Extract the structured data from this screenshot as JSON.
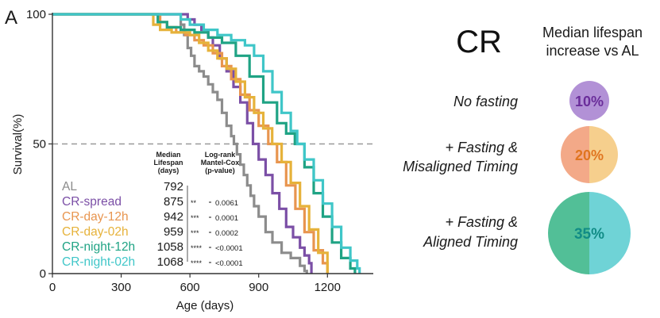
{
  "panel_label": "A",
  "colors": {
    "AL": "#8c8c8c",
    "CR-spread": "#7b4fa6",
    "CR-day-12h": "#e8954f",
    "CR-day-02h": "#e6b23a",
    "CR-night-12h": "#1fa384",
    "CR-night-02h": "#3fc6c8",
    "axis": "#333333",
    "text": "#1a1a1a",
    "ref_line": "#999999",
    "circle_nofast": "#b291d6",
    "circle_mis_left": "#f3a988",
    "circle_mis_right": "#f6cf8d",
    "circle_al_left": "#52bf97",
    "circle_al_right": "#6fd3d6",
    "pct_nofast": "#6a2d9a",
    "pct_mis": "#e07520",
    "pct_al": "#118c86"
  },
  "chart_data": {
    "type": "line",
    "xlabel": "Age (days)",
    "ylabel": "Survival(%)",
    "xlim": [
      0,
      1400
    ],
    "ylim": [
      0,
      100
    ],
    "xticks": [
      0,
      300,
      600,
      900,
      1200
    ],
    "yticks": [
      0,
      50,
      100
    ],
    "reference_line_y": 50,
    "grid": false,
    "series": [
      {
        "name": "AL",
        "median": "792",
        "stars": "",
        "pvalue": "",
        "x": [
          0,
          540,
          560,
          575,
          590,
          605,
          620,
          640,
          660,
          680,
          700,
          720,
          740,
          760,
          780,
          792,
          805,
          820,
          835,
          850,
          865,
          880,
          900,
          930,
          960,
          1000,
          1040,
          1080,
          1100,
          1110
        ],
        "y": [
          100,
          100,
          96,
          92,
          87,
          84,
          80,
          78,
          76,
          73,
          70,
          67,
          62,
          57,
          53,
          50,
          46,
          42,
          38,
          34,
          30,
          26,
          22,
          16,
          12,
          8,
          6,
          3,
          1,
          0
        ]
      },
      {
        "name": "CR-spread",
        "median": "875",
        "stars": "**",
        "pvalue": "0.0061",
        "x": [
          0,
          560,
          590,
          620,
          650,
          680,
          700,
          730,
          760,
          790,
          820,
          850,
          875,
          900,
          930,
          960,
          990,
          1020,
          1050,
          1080,
          1100,
          1120,
          1130
        ],
        "y": [
          100,
          100,
          98,
          96,
          94,
          91,
          88,
          83,
          78,
          72,
          66,
          58,
          50,
          44,
          38,
          31,
          25,
          18,
          14,
          10,
          7,
          4,
          0
        ]
      },
      {
        "name": "CR-day-12h",
        "median": "942",
        "stars": "***",
        "pvalue": "0.0001",
        "x": [
          0,
          440,
          470,
          500,
          540,
          580,
          620,
          660,
          700,
          740,
          780,
          820,
          860,
          900,
          942,
          980,
          1020,
          1060,
          1100,
          1140,
          1180,
          1200
        ],
        "y": [
          100,
          100,
          97,
          95,
          93,
          92,
          90,
          88,
          85,
          80,
          75,
          69,
          63,
          57,
          50,
          43,
          34,
          25,
          16,
          9,
          4,
          0
        ]
      },
      {
        "name": "CR-day-02h",
        "median": "959",
        "stars": "***",
        "pvalue": "0.0002",
        "x": [
          0,
          420,
          440,
          470,
          520,
          560,
          600,
          640,
          680,
          720,
          760,
          800,
          840,
          880,
          920,
          959,
          1000,
          1040,
          1080,
          1120,
          1160,
          1200
        ],
        "y": [
          100,
          100,
          96,
          94,
          93,
          93,
          92,
          89,
          86,
          83,
          79,
          74,
          68,
          62,
          56,
          50,
          43,
          35,
          26,
          17,
          8,
          0
        ]
      },
      {
        "name": "CR-night-12h",
        "median": "1058",
        "stars": "****",
        "pvalue": "<0.0001",
        "x": [
          0,
          420,
          460,
          500,
          560,
          620,
          680,
          740,
          800,
          860,
          920,
          980,
          1020,
          1058,
          1100,
          1140,
          1180,
          1220,
          1260,
          1300,
          1320
        ],
        "y": [
          100,
          100,
          97,
          95,
          94,
          93,
          91,
          89,
          84,
          76,
          66,
          58,
          54,
          50,
          41,
          31,
          22,
          12,
          6,
          2,
          0
        ]
      },
      {
        "name": "CR-night-02h",
        "median": "1068",
        "stars": "****",
        "pvalue": "<0.0001",
        "x": [
          0,
          540,
          560,
          600,
          660,
          720,
          780,
          840,
          880,
          920,
          960,
          1000,
          1040,
          1068,
          1100,
          1140,
          1180,
          1220,
          1260,
          1300,
          1330,
          1340
        ],
        "y": [
          100,
          100,
          98,
          96,
          94,
          92,
          90,
          88,
          84,
          78,
          70,
          62,
          55,
          50,
          44,
          36,
          27,
          18,
          10,
          5,
          2,
          0
        ]
      }
    ]
  },
  "table": {
    "median_header": [
      "Median",
      "Lifespan",
      "(days)"
    ],
    "logrank_header": [
      "Log-rank",
      "Mantel-Cox",
      "(p-value)"
    ]
  },
  "right_panel": {
    "title": "CR",
    "subtitle_line1": "Median lifespan",
    "subtitle_line2": "increase vs AL",
    "rows": [
      {
        "label_line1": "No fasting",
        "label_line2": "",
        "percent": "10%",
        "size": 10
      },
      {
        "label_line1": "+ Fasting &",
        "label_line2": "Misaligned Timing",
        "percent": "20%",
        "size": 20
      },
      {
        "label_line1": "+ Fasting &",
        "label_line2": "Aligned Timing",
        "percent": "35%",
        "size": 35
      }
    ]
  }
}
